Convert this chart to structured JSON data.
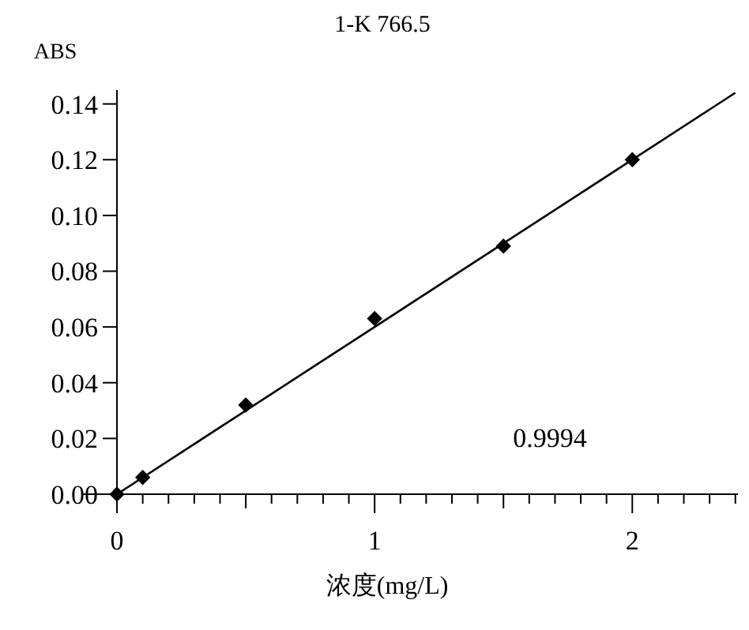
{
  "chart_data": {
    "type": "scatter",
    "title": "1-K 766.5",
    "xlabel": "浓度(mg/L)",
    "ylabel": "ABS",
    "marker": "diamond",
    "grid": false,
    "annotations": [
      "0.9994"
    ],
    "xlim": [
      -0.135,
      2.41
    ],
    "ylim": [
      0,
      0.145
    ],
    "xticks": [
      0,
      {
        "value": 0.1,
        "label": null
      },
      {
        "value": 0.2,
        "label": null
      },
      {
        "value": 0.3,
        "label": null
      },
      {
        "value": 0.4,
        "label": null
      },
      {
        "value": 0.5,
        "label": null
      },
      {
        "value": 0.6,
        "label": null
      },
      {
        "value": 0.7,
        "label": null
      },
      {
        "value": 0.8,
        "label": null
      },
      {
        "value": 0.9,
        "label": null
      },
      1,
      {
        "value": 1.1,
        "label": null
      },
      {
        "value": 1.2,
        "label": null
      },
      {
        "value": 1.3,
        "label": null
      },
      {
        "value": 1.4,
        "label": null
      },
      {
        "value": 1.5,
        "label": null
      },
      {
        "value": 1.6,
        "label": null
      },
      {
        "value": 1.7,
        "label": null
      },
      {
        "value": 1.8,
        "label": null
      },
      {
        "value": 1.9,
        "label": null
      },
      2,
      {
        "value": 2.1,
        "label": null
      },
      {
        "value": 2.2,
        "label": null
      },
      {
        "value": 2.3,
        "label": null
      },
      {
        "value": 2.4,
        "label": null
      }
    ],
    "yticks": [
      {
        "value": 0,
        "label": "0.00"
      },
      {
        "value": 0.02,
        "label": "0.02"
      },
      {
        "value": 0.04,
        "label": "0.04"
      },
      {
        "value": 0.06,
        "label": "0.06"
      },
      {
        "value": 0.08,
        "label": "0.08"
      },
      {
        "value": 0.1,
        "label": "0.10"
      },
      {
        "value": 0.12,
        "label": "0.12"
      },
      {
        "value": 0.14,
        "label": "0.14"
      }
    ],
    "series": [
      {
        "color": "#000000",
        "x": [
          0,
          0.1,
          0.5,
          1,
          1.5,
          2
        ],
        "values": [
          0,
          0.006,
          0.032,
          0.063,
          0.089,
          0.12
        ]
      },
      {
        "type": "line",
        "marker": "none",
        "color": "#000000",
        "x": [
          0,
          2.4
        ],
        "values": [
          0,
          0.144
        ]
      }
    ]
  }
}
